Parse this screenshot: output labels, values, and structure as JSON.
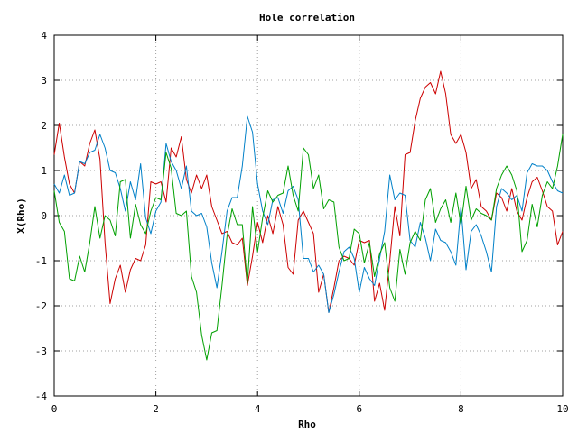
{
  "chart_data": {
    "type": "line",
    "title": "Hole correlation",
    "xlabel": "Rho",
    "ylabel": "X(Rho)",
    "xlim": [
      0,
      10
    ],
    "ylim": [
      -4,
      4
    ],
    "xticks": [
      "0",
      "2",
      "4",
      "6",
      "8",
      "10"
    ],
    "yticks": [
      "-4",
      "-3",
      "-2",
      "-1",
      "0",
      "1",
      "2",
      "3",
      "4"
    ],
    "grid": true,
    "legend": "none",
    "series": [
      {
        "color": "#cc0000",
        "x": [
          0,
          0.1,
          0.2,
          0.3,
          0.4,
          0.5,
          0.6,
          0.7,
          0.8,
          0.9,
          1.0,
          1.1,
          1.2,
          1.3,
          1.4,
          1.5,
          1.6,
          1.7,
          1.8,
          1.9,
          2.0,
          2.1,
          2.2,
          2.3,
          2.4,
          2.5,
          2.6,
          2.7,
          2.8,
          2.9,
          3.0,
          3.1,
          3.2,
          3.3,
          3.4,
          3.5,
          3.6,
          3.7,
          3.8,
          3.9,
          4.0,
          4.1,
          4.2,
          4.3,
          4.4,
          4.5,
          4.6,
          4.7,
          4.8,
          4.9,
          5.0,
          5.1,
          5.2,
          5.3,
          5.4,
          5.5,
          5.6,
          5.7,
          5.8,
          5.9,
          6.0,
          6.1,
          6.2,
          6.3,
          6.4,
          6.5,
          6.6,
          6.7,
          6.8,
          6.9,
          7.0,
          7.1,
          7.2,
          7.3,
          7.4,
          7.5,
          7.6,
          7.7,
          7.8,
          7.9,
          8.0,
          8.1,
          8.2,
          8.3,
          8.4,
          8.5,
          8.6,
          8.7,
          8.8,
          8.9,
          9.0,
          9.1,
          9.2,
          9.3,
          9.4,
          9.5,
          9.6,
          9.7,
          9.8,
          9.9,
          10.0
        ],
        "values": [
          1.35,
          2.05,
          1.3,
          0.7,
          0.5,
          1.2,
          1.1,
          1.6,
          1.9,
          1.25,
          -0.6,
          -1.95,
          -1.4,
          -1.1,
          -1.7,
          -1.2,
          -0.95,
          -1.0,
          -0.65,
          0.75,
          0.7,
          0.75,
          0.3,
          1.5,
          1.3,
          1.75,
          0.8,
          0.5,
          0.9,
          0.6,
          0.9,
          0.2,
          -0.1,
          -0.4,
          -0.35,
          -0.6,
          -0.65,
          -0.5,
          -1.55,
          -0.9,
          -0.15,
          -0.6,
          0.0,
          -0.4,
          0.2,
          -0.2,
          -1.15,
          -1.3,
          -0.1,
          0.1,
          -0.15,
          -0.4,
          -1.7,
          -1.3,
          -2.15,
          -1.6,
          -1.0,
          -0.9,
          -0.95,
          -1.1,
          -0.55,
          -0.6,
          -0.55,
          -1.9,
          -1.5,
          -2.1,
          -1.0,
          0.2,
          -0.45,
          1.35,
          1.4,
          2.1,
          2.6,
          2.85,
          2.95,
          2.7,
          3.2,
          2.7,
          1.8,
          1.6,
          1.8,
          1.4,
          0.6,
          0.8,
          0.2,
          0.1,
          -0.1,
          0.5,
          0.4,
          0.1,
          0.6,
          0.1,
          -0.1,
          0.4,
          0.75,
          0.85,
          0.55,
          0.2,
          0.1,
          -0.65,
          -0.35
        ]
      },
      {
        "color": "#0080c8",
        "x": [
          0,
          0.1,
          0.2,
          0.3,
          0.4,
          0.5,
          0.6,
          0.7,
          0.8,
          0.9,
          1.0,
          1.1,
          1.2,
          1.3,
          1.4,
          1.5,
          1.6,
          1.7,
          1.8,
          1.9,
          2.0,
          2.1,
          2.2,
          2.3,
          2.4,
          2.5,
          2.6,
          2.7,
          2.8,
          2.9,
          3.0,
          3.1,
          3.2,
          3.3,
          3.4,
          3.5,
          3.6,
          3.7,
          3.8,
          3.9,
          4.0,
          4.1,
          4.2,
          4.3,
          4.4,
          4.5,
          4.6,
          4.7,
          4.8,
          4.9,
          5.0,
          5.1,
          5.2,
          5.3,
          5.4,
          5.5,
          5.6,
          5.7,
          5.8,
          5.9,
          6.0,
          6.1,
          6.2,
          6.3,
          6.4,
          6.5,
          6.6,
          6.7,
          6.8,
          6.9,
          7.0,
          7.1,
          7.2,
          7.3,
          7.4,
          7.5,
          7.6,
          7.7,
          7.8,
          7.9,
          8.0,
          8.1,
          8.2,
          8.3,
          8.4,
          8.5,
          8.6,
          8.7,
          8.8,
          8.9,
          9.0,
          9.1,
          9.2,
          9.3,
          9.4,
          9.5,
          9.6,
          9.7,
          9.8,
          9.9,
          10.0
        ],
        "values": [
          0.7,
          0.5,
          0.9,
          0.45,
          0.5,
          1.2,
          1.15,
          1.4,
          1.45,
          1.8,
          1.5,
          1.0,
          0.95,
          0.6,
          0.1,
          0.75,
          0.35,
          1.15,
          -0.05,
          -0.4,
          0.1,
          0.3,
          1.6,
          1.2,
          1.0,
          0.6,
          1.1,
          0.1,
          0.0,
          0.05,
          -0.25,
          -1.05,
          -1.6,
          -0.8,
          0.1,
          0.4,
          0.4,
          1.1,
          2.2,
          1.85,
          0.7,
          0.1,
          -0.2,
          0.35,
          0.4,
          0.05,
          0.55,
          0.65,
          0.35,
          -0.95,
          -0.95,
          -1.25,
          -1.1,
          -1.3,
          -2.15,
          -1.75,
          -1.25,
          -0.8,
          -0.7,
          -0.95,
          -1.7,
          -1.15,
          -1.4,
          -1.55,
          -0.95,
          -0.35,
          0.9,
          0.35,
          0.5,
          0.45,
          -0.55,
          -0.7,
          -0.15,
          -0.5,
          -1.0,
          -0.3,
          -0.55,
          -0.6,
          -0.8,
          -1.1,
          0.2,
          -1.2,
          -0.35,
          -0.2,
          -0.45,
          -0.8,
          -1.25,
          0.2,
          0.6,
          0.5,
          0.35,
          0.45,
          0.1,
          0.95,
          1.15,
          1.1,
          1.1,
          1.0,
          0.75,
          0.55,
          0.5
        ]
      },
      {
        "color": "#00a000",
        "x": [
          0,
          0.1,
          0.2,
          0.3,
          0.4,
          0.5,
          0.6,
          0.7,
          0.8,
          0.9,
          1.0,
          1.1,
          1.2,
          1.3,
          1.4,
          1.5,
          1.6,
          1.7,
          1.8,
          1.9,
          2.0,
          2.1,
          2.2,
          2.3,
          2.4,
          2.5,
          2.6,
          2.7,
          2.8,
          2.9,
          3.0,
          3.1,
          3.2,
          3.3,
          3.4,
          3.5,
          3.6,
          3.7,
          3.8,
          3.9,
          4.0,
          4.1,
          4.2,
          4.3,
          4.4,
          4.5,
          4.6,
          4.7,
          4.8,
          4.9,
          5.0,
          5.1,
          5.2,
          5.3,
          5.4,
          5.5,
          5.6,
          5.7,
          5.8,
          5.9,
          6.0,
          6.1,
          6.2,
          6.3,
          6.4,
          6.5,
          6.6,
          6.7,
          6.8,
          6.9,
          7.0,
          7.1,
          7.2,
          7.3,
          7.4,
          7.5,
          7.6,
          7.7,
          7.8,
          7.9,
          8.0,
          8.1,
          8.2,
          8.3,
          8.4,
          8.5,
          8.6,
          8.7,
          8.8,
          8.9,
          9.0,
          9.1,
          9.2,
          9.3,
          9.4,
          9.5,
          9.6,
          9.7,
          9.8,
          9.9,
          10.0
        ],
        "values": [
          0.55,
          -0.15,
          -0.35,
          -1.4,
          -1.45,
          -0.9,
          -1.25,
          -0.6,
          0.2,
          -0.5,
          0.0,
          -0.1,
          -0.45,
          0.75,
          0.8,
          -0.5,
          0.25,
          -0.2,
          -0.4,
          0.1,
          0.4,
          0.35,
          1.4,
          1.05,
          0.05,
          0.0,
          0.1,
          -1.35,
          -1.7,
          -2.65,
          -3.2,
          -2.6,
          -2.55,
          -1.55,
          -0.45,
          0.15,
          -0.2,
          -0.2,
          -1.5,
          0.2,
          -0.8,
          -0.05,
          0.55,
          0.3,
          0.45,
          0.5,
          1.1,
          0.45,
          0.1,
          1.5,
          1.35,
          0.6,
          0.9,
          0.15,
          0.35,
          0.3,
          -0.7,
          -1.0,
          -0.95,
          -0.3,
          -0.4,
          -1.05,
          -0.6,
          -1.35,
          -0.85,
          -0.6,
          -1.6,
          -1.9,
          -0.75,
          -1.3,
          -0.6,
          -0.35,
          -0.55,
          0.35,
          0.6,
          -0.15,
          0.15,
          0.35,
          -0.15,
          0.5,
          -0.2,
          0.65,
          -0.1,
          0.15,
          0.05,
          0.0,
          -0.1,
          0.6,
          0.9,
          1.1,
          0.9,
          0.55,
          -0.8,
          -0.55,
          0.25,
          -0.25,
          0.45,
          0.75,
          0.6,
          1.1,
          1.8
        ]
      }
    ]
  }
}
